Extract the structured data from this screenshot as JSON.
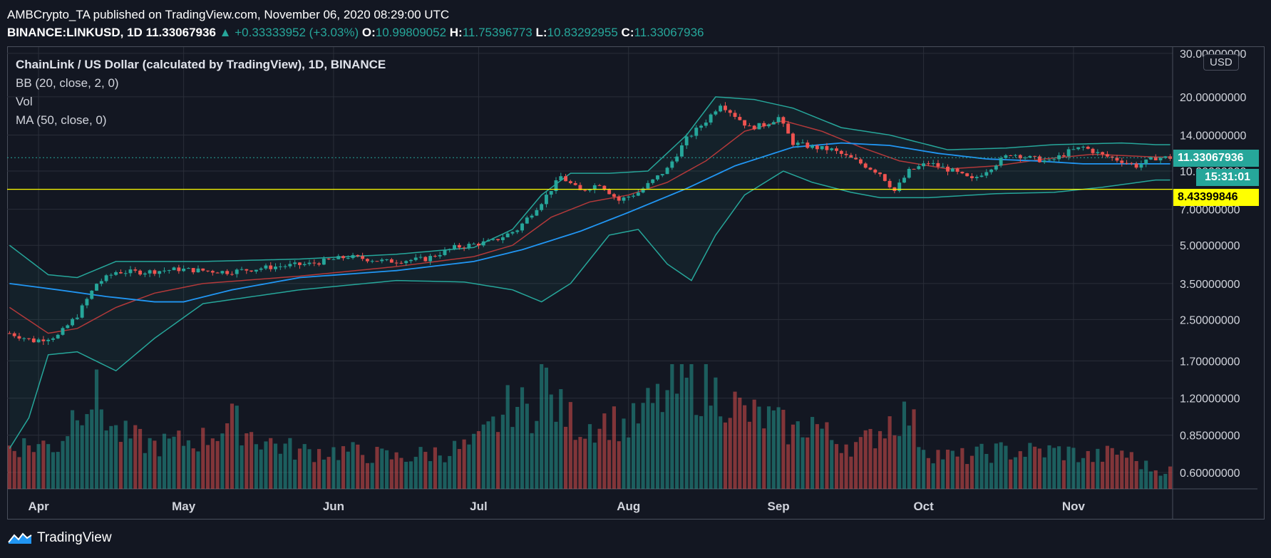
{
  "header": {
    "line1": "AMBCrypto_TA published on TradingView.com, November 06, 2020 08:29:00 UTC",
    "symbol": "BINANCE:LINKUSD, 1D",
    "last": "11.33067936",
    "change": "+0.33333952 (+3.03%)",
    "o_label": "O:",
    "o": "10.99809052",
    "h_label": "H:",
    "h": "11.75396773",
    "l_label": "L:",
    "l": "10.83292955",
    "c_label": "C:",
    "c": "11.33067936"
  },
  "legend": {
    "title": "ChainLink / US Dollar (calculated by TradingView), 1D, BINANCE",
    "bb": "BB (20, close, 2, 0)",
    "vol": "Vol",
    "ma": "MA (50, close, 0)"
  },
  "badge": {
    "currency": "USD"
  },
  "tags": {
    "last_price": "11.33067936",
    "countdown": "15:31:01",
    "hline_price": "8.43399846"
  },
  "brand": {
    "name": "TradingView"
  },
  "colors": {
    "bg": "#131722",
    "up": "#26a69a",
    "down": "#ef5350",
    "ma": "#2196f3",
    "bb_band": "#26a69a",
    "bb_basis": "#b2393a",
    "hline": "#ffff00"
  },
  "chart_data": {
    "type": "candlestick",
    "scale": "log",
    "ylim": [
      0.55,
      31
    ],
    "y_ticks": [
      "30.00000000",
      "20.00000000",
      "14.00000000",
      "10.00000000",
      "7.00000000",
      "5.00000000",
      "3.50000000",
      "2.50000000",
      "1.70000000",
      "1.20000000",
      "0.85000000",
      "0.60000000"
    ],
    "y_tick_values": [
      30,
      20,
      14,
      10,
      7,
      5,
      3.5,
      2.5,
      1.7,
      1.2,
      0.85,
      0.6
    ],
    "x_ticks": [
      "Apr",
      "May",
      "Jun",
      "Jul",
      "Aug",
      "Sep",
      "Oct",
      "Nov"
    ],
    "x_tick_days": [
      6,
      36,
      67,
      97,
      128,
      159,
      189,
      220
    ],
    "start_date": "2020-03-26",
    "horizontal_line": 8.43399846,
    "last_price": 11.33067936,
    "close_anchors": [
      [
        0,
        2.2
      ],
      [
        5,
        2.05
      ],
      [
        10,
        2.15
      ],
      [
        14,
        2.6
      ],
      [
        18,
        3.5
      ],
      [
        22,
        3.9
      ],
      [
        28,
        3.9
      ],
      [
        35,
        4.0
      ],
      [
        45,
        3.9
      ],
      [
        55,
        4.1
      ],
      [
        62,
        4.2
      ],
      [
        70,
        4.5
      ],
      [
        78,
        4.3
      ],
      [
        86,
        4.4
      ],
      [
        92,
        4.9
      ],
      [
        100,
        5.2
      ],
      [
        105,
        5.8
      ],
      [
        110,
        7.5
      ],
      [
        114,
        9.5
      ],
      [
        118,
        8.3
      ],
      [
        122,
        8.9
      ],
      [
        126,
        7.6
      ],
      [
        130,
        8.2
      ],
      [
        136,
        10.2
      ],
      [
        140,
        13.5
      ],
      [
        144,
        16.0
      ],
      [
        147,
        18.8
      ],
      [
        150,
        16.8
      ],
      [
        153,
        15.0
      ],
      [
        156,
        15.4
      ],
      [
        159,
        16.5
      ],
      [
        162,
        13.0
      ],
      [
        166,
        12.5
      ],
      [
        170,
        12.2
      ],
      [
        175,
        11.0
      ],
      [
        180,
        9.8
      ],
      [
        183,
        8.3
      ],
      [
        186,
        10.0
      ],
      [
        190,
        10.8
      ],
      [
        195,
        10.0
      ],
      [
        199,
        9.2
      ],
      [
        203,
        10.4
      ],
      [
        207,
        11.8
      ],
      [
        211,
        11.3
      ],
      [
        215,
        10.9
      ],
      [
        219,
        12.0
      ],
      [
        222,
        12.5
      ],
      [
        226,
        11.6
      ],
      [
        230,
        11.0
      ],
      [
        233,
        10.5
      ],
      [
        237,
        11.33
      ]
    ],
    "bb_upper_anchors": [
      [
        0,
        5.0
      ],
      [
        8,
        3.8
      ],
      [
        14,
        3.7
      ],
      [
        22,
        4.3
      ],
      [
        40,
        4.3
      ],
      [
        60,
        4.4
      ],
      [
        80,
        4.6
      ],
      [
        96,
        4.9
      ],
      [
        104,
        5.8
      ],
      [
        110,
        8.0
      ],
      [
        116,
        9.8
      ],
      [
        124,
        9.8
      ],
      [
        132,
        10.0
      ],
      [
        140,
        14.0
      ],
      [
        146,
        20.0
      ],
      [
        154,
        19.5
      ],
      [
        162,
        18.0
      ],
      [
        172,
        15.0
      ],
      [
        182,
        14.0
      ],
      [
        194,
        12.2
      ],
      [
        206,
        12.4
      ],
      [
        216,
        12.8
      ],
      [
        230,
        13.0
      ],
      [
        237,
        12.8
      ]
    ],
    "bb_lower_anchors": [
      [
        0,
        0.75
      ],
      [
        4,
        1.0
      ],
      [
        8,
        1.8
      ],
      [
        14,
        1.85
      ],
      [
        22,
        1.55
      ],
      [
        30,
        2.1
      ],
      [
        40,
        2.9
      ],
      [
        60,
        3.3
      ],
      [
        80,
        3.6
      ],
      [
        94,
        3.55
      ],
      [
        104,
        3.3
      ],
      [
        110,
        2.95
      ],
      [
        116,
        3.5
      ],
      [
        124,
        5.5
      ],
      [
        130,
        5.8
      ],
      [
        136,
        4.2
      ],
      [
        141,
        3.6
      ],
      [
        146,
        5.5
      ],
      [
        152,
        8.0
      ],
      [
        160,
        10.0
      ],
      [
        166,
        9.0
      ],
      [
        174,
        8.2
      ],
      [
        180,
        7.8
      ],
      [
        190,
        7.8
      ],
      [
        204,
        8.1
      ],
      [
        216,
        8.2
      ],
      [
        226,
        8.6
      ],
      [
        237,
        9.2
      ]
    ],
    "bb_basis_anchors": [
      [
        0,
        2.8
      ],
      [
        8,
        2.2
      ],
      [
        14,
        2.3
      ],
      [
        22,
        2.8
      ],
      [
        30,
        3.2
      ],
      [
        40,
        3.5
      ],
      [
        60,
        3.75
      ],
      [
        80,
        4.1
      ],
      [
        96,
        4.5
      ],
      [
        104,
        5.0
      ],
      [
        112,
        6.5
      ],
      [
        120,
        7.5
      ],
      [
        128,
        8.0
      ],
      [
        136,
        9.0
      ],
      [
        144,
        11.0
      ],
      [
        152,
        14.5
      ],
      [
        160,
        16.0
      ],
      [
        168,
        14.5
      ],
      [
        176,
        12.5
      ],
      [
        184,
        11.0
      ],
      [
        194,
        10.2
      ],
      [
        204,
        10.5
      ],
      [
        214,
        11.2
      ],
      [
        224,
        11.7
      ],
      [
        237,
        11.4
      ]
    ],
    "ma50_anchors": [
      [
        0,
        3.5
      ],
      [
        10,
        3.3
      ],
      [
        20,
        3.1
      ],
      [
        30,
        2.95
      ],
      [
        36,
        2.95
      ],
      [
        46,
        3.3
      ],
      [
        60,
        3.7
      ],
      [
        80,
        3.95
      ],
      [
        96,
        4.3
      ],
      [
        106,
        4.8
      ],
      [
        118,
        5.7
      ],
      [
        128,
        6.8
      ],
      [
        140,
        8.5
      ],
      [
        150,
        10.5
      ],
      [
        162,
        12.5
      ],
      [
        172,
        13.0
      ],
      [
        182,
        12.7
      ],
      [
        192,
        11.8
      ],
      [
        202,
        11.2
      ],
      [
        212,
        11.0
      ],
      [
        222,
        10.7
      ],
      [
        237,
        10.7
      ]
    ],
    "volume_anchors": [
      [
        0,
        0.35
      ],
      [
        10,
        0.35
      ],
      [
        14,
        0.7
      ],
      [
        18,
        0.75
      ],
      [
        22,
        0.45
      ],
      [
        30,
        0.35
      ],
      [
        40,
        0.4
      ],
      [
        46,
        0.55
      ],
      [
        52,
        0.4
      ],
      [
        60,
        0.3
      ],
      [
        70,
        0.3
      ],
      [
        80,
        0.25
      ],
      [
        90,
        0.3
      ],
      [
        96,
        0.35
      ],
      [
        100,
        0.5
      ],
      [
        104,
        0.7
      ],
      [
        108,
        0.6
      ],
      [
        110,
        1.0
      ],
      [
        112,
        0.7
      ],
      [
        118,
        0.5
      ],
      [
        124,
        0.55
      ],
      [
        128,
        0.5
      ],
      [
        132,
        0.65
      ],
      [
        136,
        0.75
      ],
      [
        140,
        0.85
      ],
      [
        144,
        0.8
      ],
      [
        148,
        0.75
      ],
      [
        152,
        0.6
      ],
      [
        158,
        0.55
      ],
      [
        162,
        0.45
      ],
      [
        166,
        0.55
      ],
      [
        170,
        0.4
      ],
      [
        176,
        0.35
      ],
      [
        182,
        0.55
      ],
      [
        186,
        0.6
      ],
      [
        190,
        0.3
      ],
      [
        196,
        0.25
      ],
      [
        204,
        0.3
      ],
      [
        212,
        0.3
      ],
      [
        218,
        0.3
      ],
      [
        224,
        0.25
      ],
      [
        230,
        0.3
      ],
      [
        237,
        0.15
      ]
    ]
  }
}
